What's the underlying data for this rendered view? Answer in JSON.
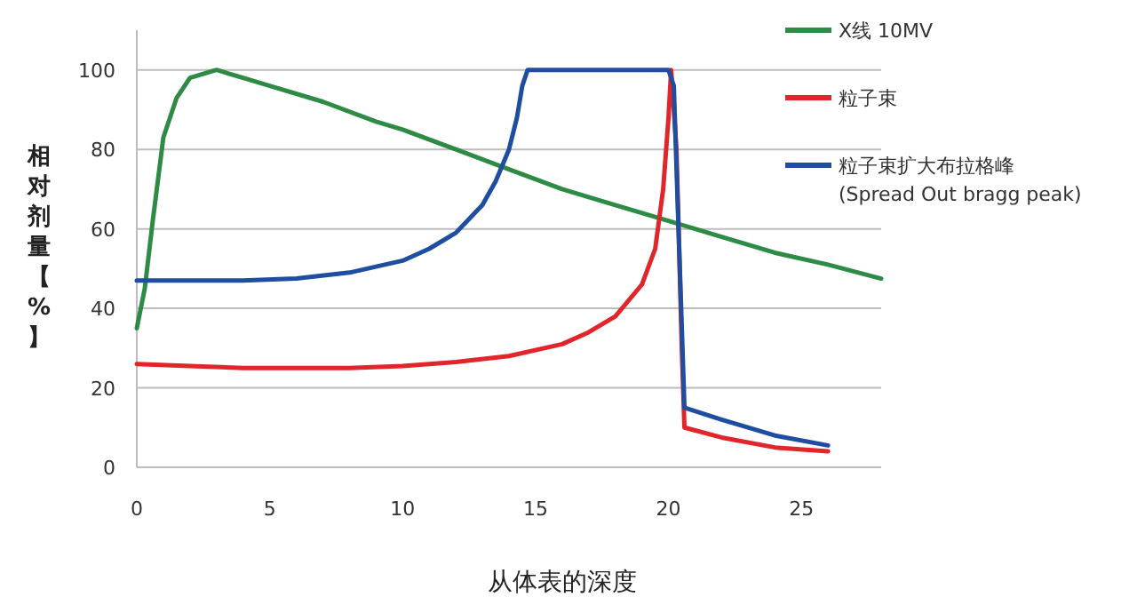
{
  "chart_data": {
    "type": "line",
    "xlabel": "从体表的深度",
    "ylabel": "相对剂量【%】",
    "xlim": [
      0,
      28
    ],
    "ylim": [
      0,
      110
    ],
    "xticks": [
      0,
      5,
      10,
      15,
      20,
      25
    ],
    "yticks": [
      0,
      20,
      40,
      60,
      80,
      100
    ],
    "grid": "y",
    "legend": "top right",
    "marker": "none",
    "line_style": "solid",
    "series": [
      {
        "name": "X线  10MV",
        "color": "#2e8b45",
        "x": [
          0,
          0.3,
          0.6,
          1,
          1.5,
          2,
          3,
          4,
          5,
          7,
          9,
          10,
          12,
          14,
          16,
          18,
          20,
          22,
          24,
          26,
          28
        ],
        "values": [
          35,
          45,
          62,
          83,
          93,
          98,
          100,
          98,
          96,
          92,
          87,
          85,
          80,
          75,
          70,
          66,
          62,
          58,
          54,
          51,
          47.5
        ]
      },
      {
        "name": "粒子束",
        "color": "#e0262b",
        "x": [
          0,
          2,
          4,
          6,
          8,
          10,
          12,
          14,
          16,
          17,
          18,
          19,
          19.5,
          19.8,
          20,
          20.1,
          20.3,
          20.5,
          20.6,
          22,
          24,
          26
        ],
        "values": [
          26,
          25.5,
          25,
          25,
          25,
          25.5,
          26.5,
          28,
          31,
          34,
          38,
          46,
          55,
          70,
          88,
          100,
          80,
          30,
          10,
          7.5,
          5,
          4
        ]
      },
      {
        "name": "粒子束扩大布拉格峰\n(Spread Out bragg peak)",
        "color": "#1f4ea0",
        "x": [
          0,
          2,
          4,
          6,
          8,
          10,
          11,
          12,
          13,
          13.5,
          14,
          14.3,
          14.5,
          14.7,
          20,
          20.2,
          20.6,
          22,
          24,
          26
        ],
        "values": [
          47,
          47,
          47,
          47.5,
          49,
          52,
          55,
          59,
          66,
          72,
          80,
          88,
          96,
          100,
          100,
          96,
          15,
          12,
          8,
          5.5
        ]
      }
    ]
  }
}
